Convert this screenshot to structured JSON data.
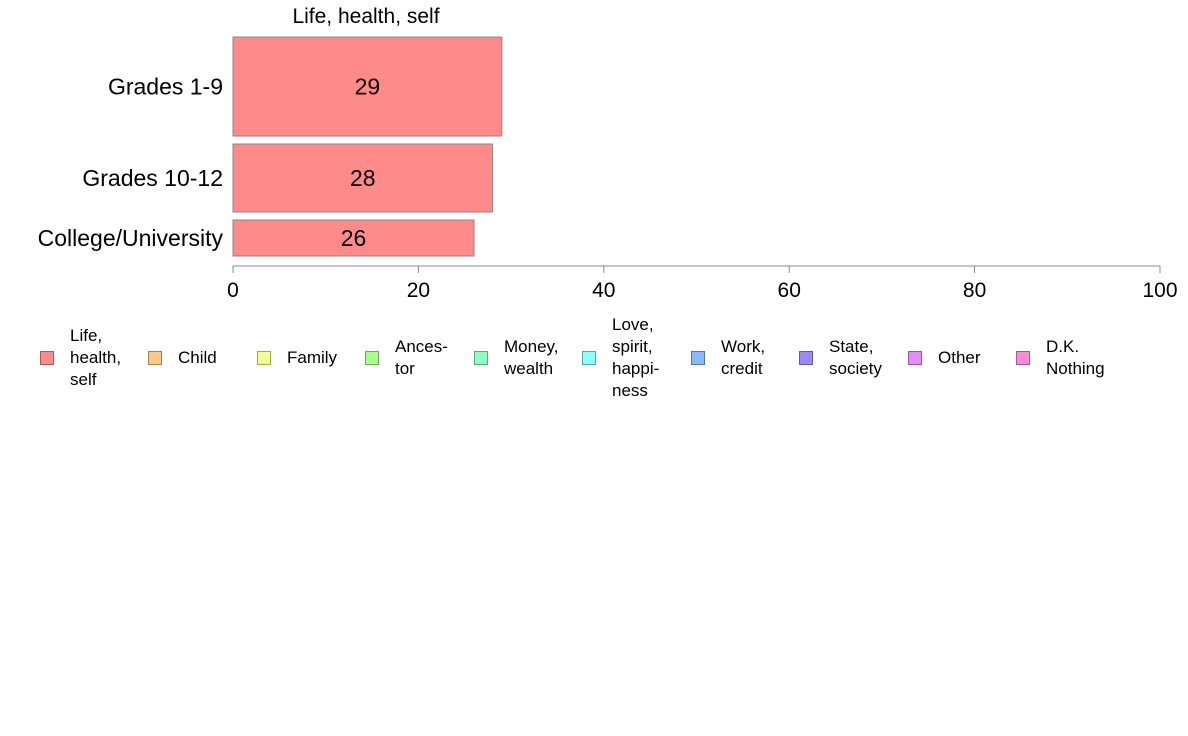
{
  "chart_data": {
    "type": "bar",
    "orientation": "horizontal",
    "panel_title": "Life, health, self",
    "categories": [
      "Grades 1-9",
      "Grades 10-12",
      "College/University"
    ],
    "series": [
      {
        "values": [
          29,
          28,
          26
        ]
      }
    ],
    "bar_labels": [
      "29",
      "28",
      "26"
    ],
    "xlim": [
      0,
      100
    ],
    "xticks": [
      0,
      20,
      40,
      60,
      80,
      100
    ],
    "xtick_labels": [
      "0",
      "20",
      "40",
      "60",
      "80",
      "100"
    ],
    "grid": false,
    "legend_position": "bottom"
  },
  "legend": [
    {
      "label": "Life,\nhealth,\nself",
      "color": "#FF8A8A"
    },
    {
      "label": "Child",
      "color": "#FFC78A"
    },
    {
      "label": "Family",
      "color": "#F2FF8A"
    },
    {
      "label": "Ances-\ntor",
      "color": "#A8FF8A"
    },
    {
      "label": "Money,\nwealth",
      "color": "#8AFFC0"
    },
    {
      "label": "Love,\nspirit,\nhappi-\nness",
      "color": "#8AFFFF"
    },
    {
      "label": "Work,\ncredit",
      "color": "#8AB8FF"
    },
    {
      "label": "State,\nsociety",
      "color": "#9A8AFF"
    },
    {
      "label": "Other",
      "color": "#E38AFF"
    },
    {
      "label": "D.K.\nNothing",
      "color": "#FF8AD2"
    }
  ]
}
